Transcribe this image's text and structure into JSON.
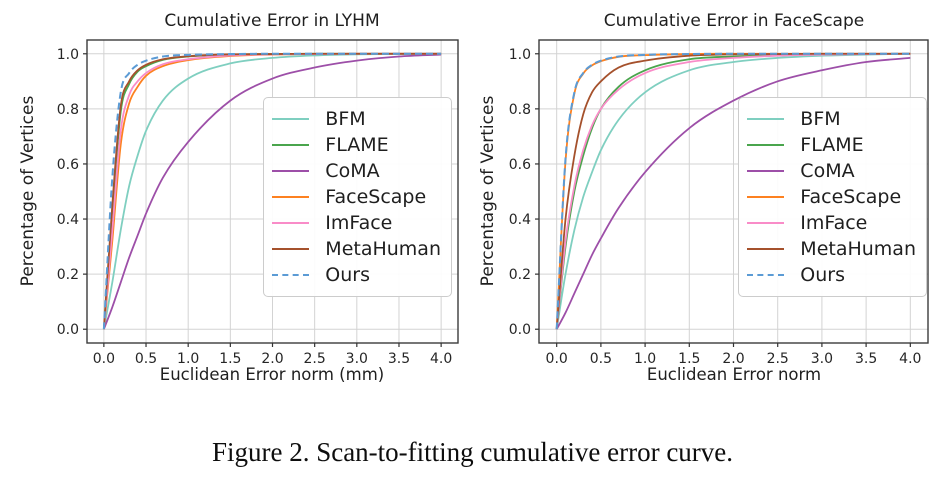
{
  "figure": {
    "caption": "Figure 2. Scan-to-fitting cumulative error curve."
  },
  "shared": {
    "x_samples": [
      0,
      0.1,
      0.2,
      0.3,
      0.4,
      0.5,
      0.7,
      1.0,
      1.5,
      2.0,
      2.5,
      3.0,
      3.5,
      4.0
    ]
  },
  "chart_data": [
    {
      "type": "line",
      "title": "Cumulative Error in LYHM",
      "xlabel": "Euclidean Error norm (mm)",
      "ylabel": "Percentage of Vertices",
      "xlim": [
        -0.2,
        4.2
      ],
      "ylim": [
        -0.05,
        1.05
      ],
      "grid": true,
      "legend_position": "center-right",
      "xticks": [
        0,
        0.5,
        1.0,
        1.5,
        2.0,
        2.5,
        3.0,
        3.5,
        4.0
      ],
      "xtick_labels": [
        "0.0",
        "0.5",
        "1.0",
        "1.5",
        "2.0",
        "2.5",
        "3.0",
        "3.5",
        "4.0"
      ],
      "yticks": [
        0,
        0.2,
        0.4,
        0.6,
        0.8,
        1.0
      ],
      "ytick_labels": [
        "0.0",
        "0.2",
        "0.4",
        "0.6",
        "0.8",
        "1.0"
      ],
      "series": [
        {
          "name": "BFM",
          "color": "#7fcfc0",
          "style": "solid",
          "values": [
            0,
            0.17,
            0.36,
            0.52,
            0.63,
            0.72,
            0.83,
            0.91,
            0.965,
            0.985,
            0.994,
            0.998,
            0.999,
            1.0
          ]
        },
        {
          "name": "FLAME",
          "color": "#4aa54d",
          "style": "solid",
          "values": [
            0,
            0.42,
            0.79,
            0.89,
            0.935,
            0.955,
            0.978,
            0.99,
            0.997,
            0.999,
            1.0,
            1.0,
            1.0,
            1.0
          ]
        },
        {
          "name": "CoMA",
          "color": "#9d4fa8",
          "style": "solid",
          "values": [
            0,
            0.08,
            0.17,
            0.26,
            0.34,
            0.42,
            0.55,
            0.68,
            0.83,
            0.91,
            0.95,
            0.975,
            0.99,
            0.997
          ]
        },
        {
          "name": "FaceScape",
          "color": "#fd8120",
          "style": "solid",
          "values": [
            0,
            0.32,
            0.67,
            0.82,
            0.88,
            0.92,
            0.955,
            0.977,
            0.992,
            0.997,
            0.999,
            1.0,
            1.0,
            1.0
          ]
        },
        {
          "name": "ImFace",
          "color": "#f98cc8",
          "style": "solid",
          "values": [
            0,
            0.36,
            0.72,
            0.85,
            0.9,
            0.93,
            0.962,
            0.98,
            0.994,
            0.998,
            0.999,
            1.0,
            1.0,
            1.0
          ]
        },
        {
          "name": "MetaHuman",
          "color": "#a5512c",
          "style": "solid",
          "values": [
            0,
            0.45,
            0.81,
            0.9,
            0.94,
            0.96,
            0.98,
            0.991,
            0.998,
            0.999,
            1.0,
            1.0,
            1.0,
            1.0
          ]
        },
        {
          "name": "Ours",
          "color": "#5b9bd5",
          "style": "dashed",
          "values": [
            0,
            0.55,
            0.86,
            0.93,
            0.96,
            0.975,
            0.99,
            0.996,
            0.999,
            1.0,
            1.0,
            1.0,
            1.0,
            1.0
          ]
        }
      ]
    },
    {
      "type": "line",
      "title": "Cumulative Error in FaceScape",
      "xlabel": "Euclidean Error norm",
      "ylabel": "Percentage of Vertices",
      "xlim": [
        -0.2,
        4.2
      ],
      "ylim": [
        -0.05,
        1.05
      ],
      "grid": true,
      "legend_position": "center-right",
      "xticks": [
        0,
        0.5,
        1.0,
        1.5,
        2.0,
        2.5,
        3.0,
        3.5,
        4.0
      ],
      "xtick_labels": [
        "0.0",
        "0.5",
        "1.0",
        "1.5",
        "2.0",
        "2.5",
        "3.0",
        "3.5",
        "4.0"
      ],
      "yticks": [
        0,
        0.2,
        0.4,
        0.6,
        0.8,
        1.0
      ],
      "ytick_labels": [
        "0.0",
        "0.2",
        "0.4",
        "0.6",
        "0.8",
        "1.0"
      ],
      "series": [
        {
          "name": "BFM",
          "color": "#7fcfc0",
          "style": "solid",
          "values": [
            0,
            0.2,
            0.36,
            0.48,
            0.57,
            0.65,
            0.76,
            0.86,
            0.94,
            0.97,
            0.985,
            0.993,
            0.997,
            1.0
          ]
        },
        {
          "name": "FLAME",
          "color": "#4aa54d",
          "style": "solid",
          "values": [
            0,
            0.3,
            0.5,
            0.63,
            0.73,
            0.8,
            0.88,
            0.94,
            0.98,
            0.99,
            0.995,
            0.998,
            0.999,
            1.0
          ]
        },
        {
          "name": "CoMA",
          "color": "#9d4fa8",
          "style": "solid",
          "values": [
            0,
            0.06,
            0.13,
            0.2,
            0.27,
            0.33,
            0.44,
            0.57,
            0.73,
            0.83,
            0.9,
            0.94,
            0.97,
            0.985
          ]
        },
        {
          "name": "FaceScape",
          "color": "#fd8120",
          "style": "solid",
          "values": [
            0,
            0.61,
            0.855,
            0.928,
            0.958,
            0.973,
            0.989,
            0.995,
            0.999,
            1.0,
            1.0,
            1.0,
            1.0,
            1.0
          ]
        },
        {
          "name": "ImFace",
          "color": "#f98cc8",
          "style": "solid",
          "values": [
            0,
            0.32,
            0.52,
            0.65,
            0.74,
            0.8,
            0.87,
            0.93,
            0.97,
            0.985,
            0.993,
            0.997,
            0.999,
            1.0
          ]
        },
        {
          "name": "MetaHuman",
          "color": "#a5512c",
          "style": "solid",
          "values": [
            0,
            0.4,
            0.63,
            0.78,
            0.86,
            0.9,
            0.95,
            0.975,
            0.993,
            0.998,
            0.999,
            1.0,
            1.0,
            1.0
          ]
        },
        {
          "name": "Ours",
          "color": "#5b9bd5",
          "style": "dashed",
          "values": [
            0,
            0.62,
            0.86,
            0.93,
            0.96,
            0.975,
            0.99,
            0.996,
            0.999,
            1.0,
            1.0,
            1.0,
            1.0,
            1.0
          ]
        }
      ]
    }
  ]
}
